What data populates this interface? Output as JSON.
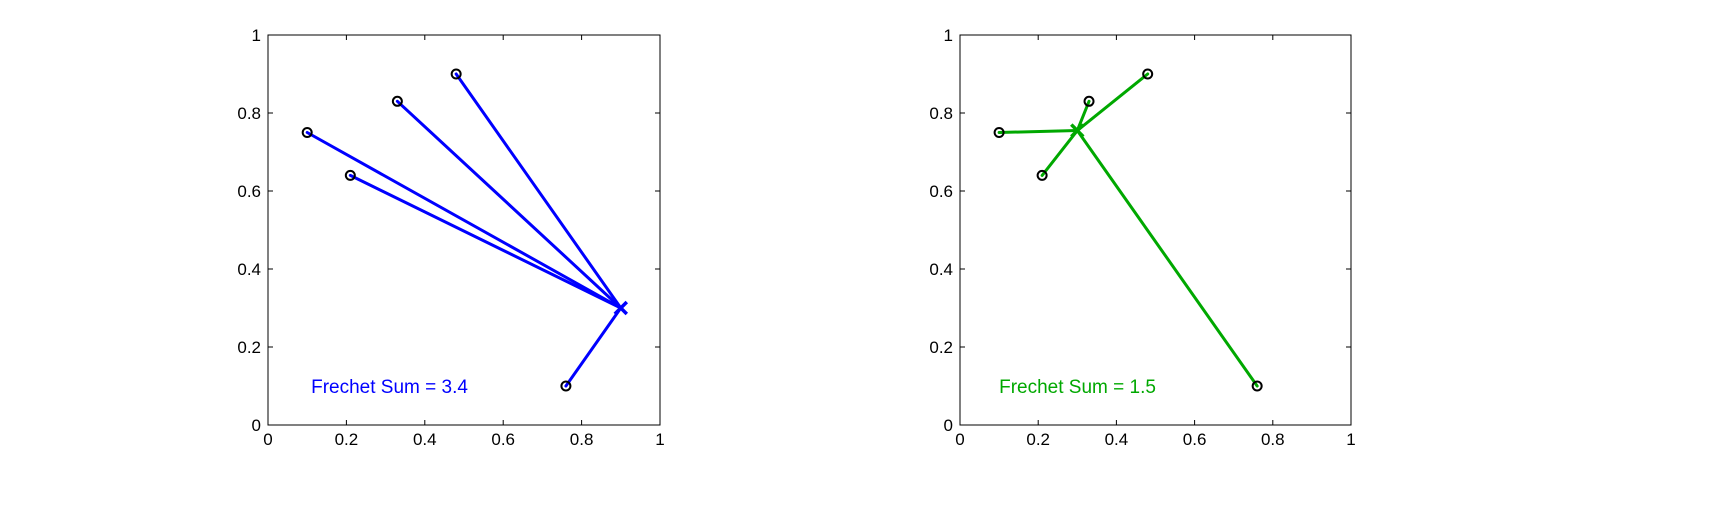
{
  "chart_data": [
    {
      "type": "scatter",
      "title": "",
      "xlabel": "",
      "ylabel": "",
      "xlim": [
        0,
        1
      ],
      "ylim": [
        0,
        1
      ],
      "xticks": [
        0,
        0.2,
        0.4,
        0.6,
        0.8,
        1
      ],
      "yticks": [
        0,
        0.2,
        0.4,
        0.6,
        0.8,
        1
      ],
      "xtick_labels": [
        "0",
        "0.2",
        "0.4",
        "0.6",
        "0.8",
        "1"
      ],
      "ytick_labels": [
        "0",
        "0.2",
        "0.4",
        "0.6",
        "0.8",
        "1"
      ],
      "grid": false,
      "color": "#0000ff",
      "points": [
        {
          "x": 0.1,
          "y": 0.75
        },
        {
          "x": 0.21,
          "y": 0.64
        },
        {
          "x": 0.33,
          "y": 0.83
        },
        {
          "x": 0.48,
          "y": 0.9
        },
        {
          "x": 0.76,
          "y": 0.1
        }
      ],
      "mean": {
        "x": 0.9,
        "y": 0.3
      },
      "annotation": {
        "text": "Frechet Sum = 3.4",
        "x": 0.11,
        "y": 0.1
      }
    },
    {
      "type": "scatter",
      "title": "",
      "xlabel": "",
      "ylabel": "",
      "xlim": [
        0,
        1
      ],
      "ylim": [
        0,
        1
      ],
      "xticks": [
        0,
        0.2,
        0.4,
        0.6,
        0.8,
        1
      ],
      "yticks": [
        0,
        0.2,
        0.4,
        0.6,
        0.8,
        1
      ],
      "xtick_labels": [
        "0",
        "0.2",
        "0.4",
        "0.6",
        "0.8",
        "1"
      ],
      "ytick_labels": [
        "0",
        "0.2",
        "0.4",
        "0.6",
        "0.8",
        "1"
      ],
      "grid": false,
      "color": "#00a800",
      "points": [
        {
          "x": 0.1,
          "y": 0.75
        },
        {
          "x": 0.21,
          "y": 0.64
        },
        {
          "x": 0.33,
          "y": 0.83
        },
        {
          "x": 0.48,
          "y": 0.9
        },
        {
          "x": 0.76,
          "y": 0.1
        }
      ],
      "mean": {
        "x": 0.3,
        "y": 0.755
      },
      "annotation": {
        "text": "Frechet Sum = 1.5",
        "x": 0.1,
        "y": 0.1
      }
    }
  ]
}
